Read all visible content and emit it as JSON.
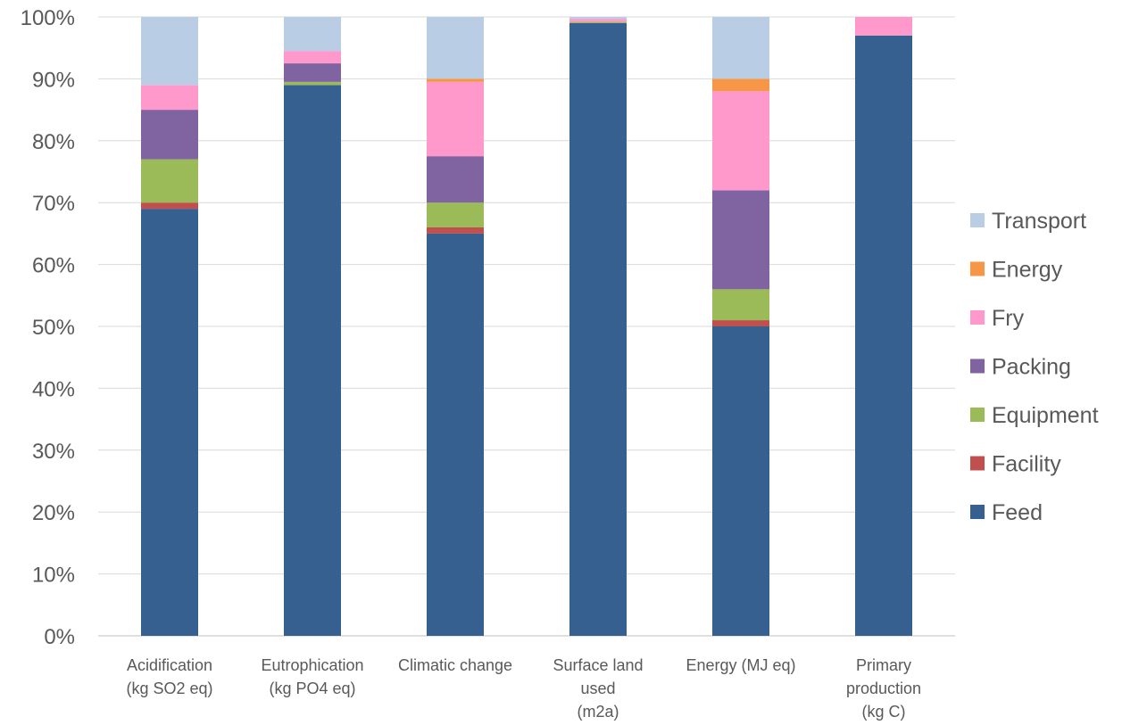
{
  "chart_data": {
    "type": "bar",
    "stacked": true,
    "percent": true,
    "title": "",
    "xlabel": "",
    "ylabel": "",
    "ylim": [
      0,
      100
    ],
    "yticks": [
      "0%",
      "10%",
      "20%",
      "30%",
      "40%",
      "50%",
      "60%",
      "70%",
      "80%",
      "90%",
      "100%"
    ],
    "grid": true,
    "legend_position": "right",
    "categories": [
      [
        "Acidification",
        "(kg SO2 eq)"
      ],
      [
        "Eutrophication",
        "(kg PO4 eq)"
      ],
      [
        "Climatic change"
      ],
      [
        "Surface land",
        "used",
        "(m2a)"
      ],
      [
        "Energy (MJ eq)"
      ],
      [
        "Primary",
        "production",
        "(kg C)"
      ]
    ],
    "series": [
      {
        "name": "Feed",
        "color": "#356090",
        "values": [
          69,
          89,
          65,
          99,
          50,
          97
        ]
      },
      {
        "name": "Facility",
        "color": "#c0504d",
        "values": [
          1,
          0,
          1,
          0,
          1,
          0
        ]
      },
      {
        "name": "Equipment",
        "color": "#9bbb59",
        "values": [
          7,
          0.5,
          4,
          0.2,
          5,
          0
        ]
      },
      {
        "name": "Packing",
        "color": "#8064a2",
        "values": [
          8,
          3,
          7.5,
          0,
          16,
          0
        ]
      },
      {
        "name": "Fry",
        "color": "#ff99cc",
        "values": [
          4,
          2,
          12,
          0.5,
          16,
          3
        ]
      },
      {
        "name": "Energy",
        "color": "#f79646",
        "values": [
          0,
          0,
          0.5,
          0,
          2,
          0
        ]
      },
      {
        "name": "Transport",
        "color": "#b9cde5",
        "values": [
          11,
          5.5,
          10,
          0.3,
          10,
          0
        ]
      }
    ]
  }
}
